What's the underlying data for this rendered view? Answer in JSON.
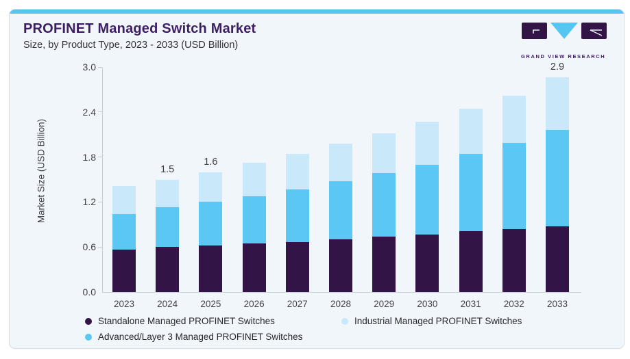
{
  "header": {
    "title": "PROFINET Managed Switch Market",
    "subtitle": "Size, by Product Type, 2023 - 2033 (USD Billion)"
  },
  "logo": {
    "text": "GRAND VIEW RESEARCH"
  },
  "colors": {
    "accent_strip": "#55c6f1",
    "card_background": "#f0f6fa",
    "title_purple": "#3d1d63",
    "axis_line": "#c6ccd5",
    "standalone_purple": "#331447",
    "advanced_blue": "#5bc8f3",
    "industrial_light_blue": "#c9e9fb"
  },
  "chart_data": {
    "type": "bar",
    "stacked": true,
    "title": "PROFINET Managed Switch Market",
    "subtitle": "Size, by Product Type, 2023 - 2033 (USD Billion)",
    "xlabel": "",
    "ylabel": "Market Size (USD Billion)",
    "ylim": [
      0,
      3.0
    ],
    "ytick_labels": [
      "0.0",
      "0.6",
      "1.2",
      "1.8",
      "2.4",
      "3.0"
    ],
    "grid": false,
    "legend_position": "bottom",
    "categories": [
      "2023",
      "2024",
      "2025",
      "2026",
      "2027",
      "2028",
      "2029",
      "2030",
      "2031",
      "2032",
      "2033"
    ],
    "series": [
      {
        "name": "Standalone Managed PROFINET Switches",
        "color": "#331447",
        "values": [
          0.57,
          0.6,
          0.62,
          0.65,
          0.67,
          0.7,
          0.74,
          0.77,
          0.81,
          0.84,
          0.88
        ]
      },
      {
        "name": "Advanced/Layer 3 Managed PROFINET Switches",
        "color": "#5bc8f3",
        "values": [
          0.47,
          0.53,
          0.58,
          0.63,
          0.7,
          0.78,
          0.85,
          0.93,
          1.03,
          1.15,
          1.28
        ]
      },
      {
        "name": "Industrial Managed PROFINET Switches",
        "color": "#c9e9fb",
        "values": [
          0.37,
          0.37,
          0.4,
          0.44,
          0.47,
          0.5,
          0.53,
          0.57,
          0.6,
          0.63,
          0.7
        ]
      }
    ],
    "totals": [
      1.41,
      1.5,
      1.6,
      1.72,
      1.84,
      1.98,
      2.12,
      2.27,
      2.44,
      2.62,
      2.86
    ],
    "bar_labels": [
      "",
      "1.5",
      "1.6",
      "",
      "",
      "",
      "",
      "",
      "",
      "",
      "2.9"
    ]
  },
  "legend": {
    "items": [
      {
        "label": "Standalone Managed PROFINET Switches",
        "color": "#331447"
      },
      {
        "label": "Industrial Managed PROFINET Switches",
        "color": "#c9e9fb"
      },
      {
        "label": "Advanced/Layer 3 Managed PROFINET Switches",
        "color": "#5bc8f3"
      }
    ]
  }
}
